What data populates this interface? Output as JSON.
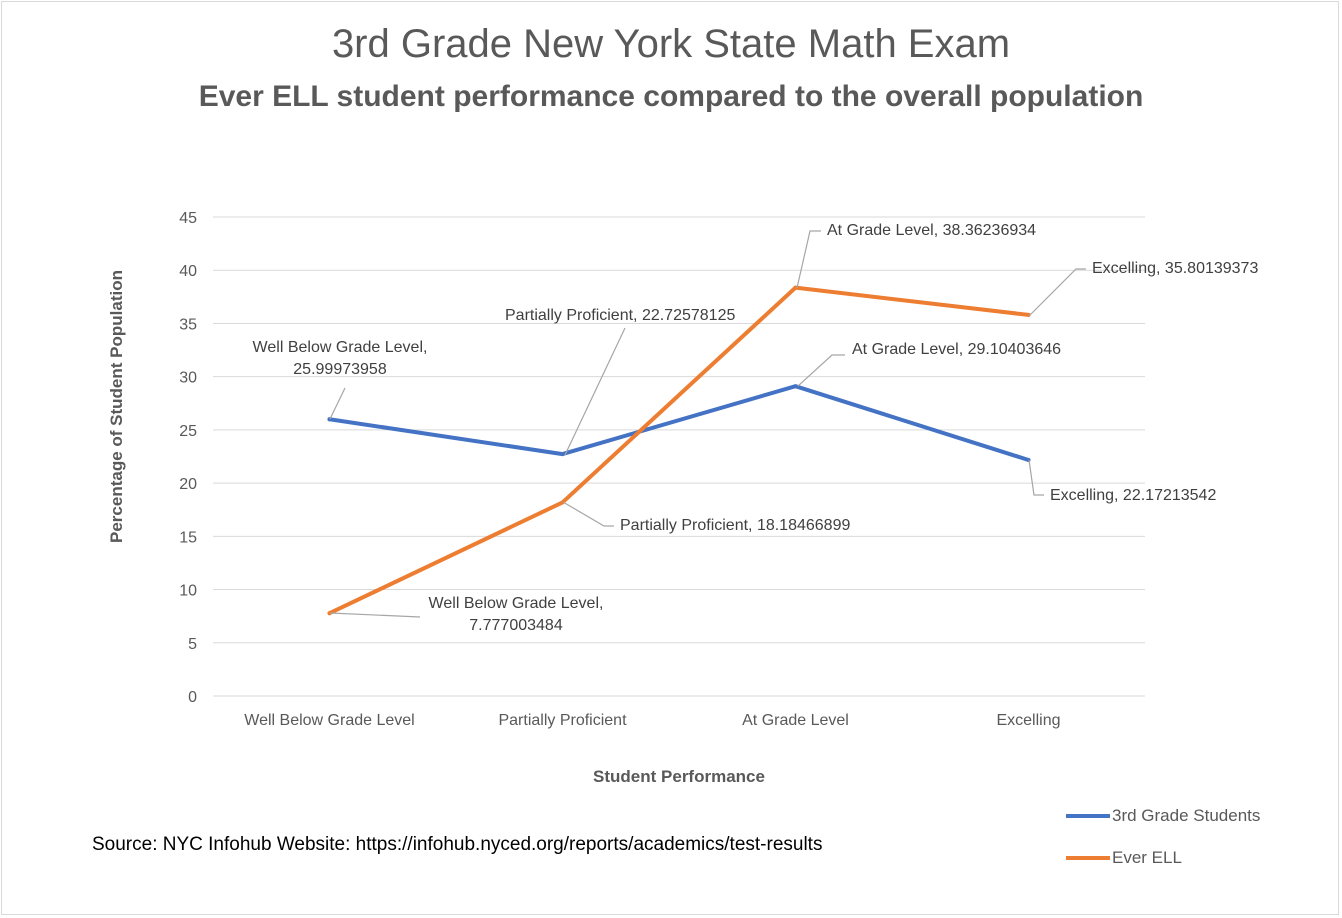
{
  "chart_data": {
    "type": "line",
    "title": "3rd Grade New York State Math Exam",
    "subtitle": "Ever ELL student performance compared to the overall population",
    "xlabel": "Student Performance",
    "ylabel": "Percentage of Student Population",
    "categories": [
      "Well Below Grade Level",
      "Partially Proficient",
      "At Grade Level",
      "Excelling"
    ],
    "ylim": [
      0,
      45
    ],
    "yticks": [
      0,
      5,
      10,
      15,
      20,
      25,
      30,
      35,
      40,
      45
    ],
    "grid": true,
    "legend_position": "bottom-right",
    "series": [
      {
        "name": "3rd Grade Students",
        "color": "#4472C4",
        "values": [
          25.99973958,
          22.72578125,
          29.10403646,
          22.17213542
        ],
        "labels": [
          "Well Below Grade Level, 25.99973958",
          "Partially Proficient, 22.72578125",
          "At Grade Level, 29.10403646",
          "Excelling, 22.17213542"
        ]
      },
      {
        "name": "Ever ELL",
        "color": "#ED7D31",
        "values": [
          7.777003484,
          18.18466899,
          38.36236934,
          35.80139373
        ],
        "labels": [
          "Well Below Grade Level, 7.777003484",
          "Partially Proficient, 18.18466899",
          "At Grade Level, 38.36236934",
          "Excelling, 35.80139373"
        ]
      }
    ]
  },
  "source_text": "Source: NYC Infohub Website: https://infohub.nyced.org/reports/academics/test-results"
}
